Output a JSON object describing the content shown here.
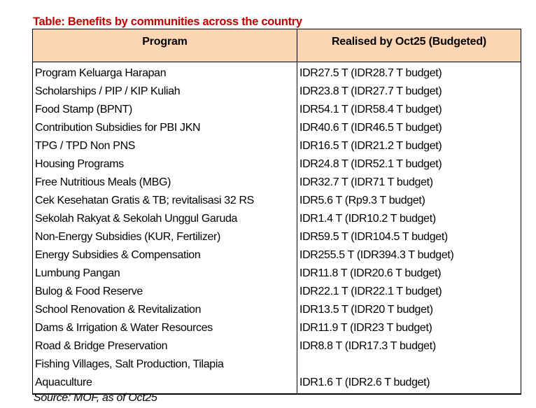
{
  "title": "Table: Benefits by communities across the country",
  "headers": [
    "Program",
    "Realised by Oct25 (Budgeted)"
  ],
  "programs": [
    "Program Keluarga Harapan",
    "Scholarships / PIP / KIP Kuliah",
    "Food Stamp (BPNT)",
    "Contribution Subsidies for PBI JKN",
    "TPG / TPD Non PNS",
    "Housing Programs",
    "Free Nutritious Meals (MBG)",
    "Cek Kesehatan Gratis & TB; revitalisasi 32 RS",
    "Sekolah Rakyat & Sekolah Unggul Garuda",
    "Non-Energy Subsidies (KUR, Fertilizer)",
    "Energy Subsidies & Compensation",
    "Lumbung Pangan",
    "Bulog & Food Reserve",
    "School Renovation & Revitalization",
    "Dams & Irrigation & Water Resources",
    "Road & Bridge Preservation",
    "Fishing Villages, Salt Production, Tilapia",
    "Aquaculture"
  ],
  "values": [
    "IDR27.5 T (IDR28.7 T budget)",
    "IDR23.8 T (IDR27.7 T budget)",
    "IDR54.1 T (IDR58.4 T budget)",
    "IDR40.6 T (IDR46.5 T budget)",
    "IDR16.5 T (IDR21.2 T budget)",
    "IDR24.8 T (IDR52.1 T budget)",
    "IDR32.7 T (IDR71 T budget)",
    "IDR5.6 T (Rp9.3 T budget)",
    "IDR1.4 T (IDR10.2 T budget)",
    "IDR59.5 T (IDR104.5 T budget)",
    "IDR255.5 T (IDR394.3 T budget)",
    "IDR11.8 T (IDR20.6 T budget)",
    "IDR22.1 T (IDR22.1 T budget)",
    "IDR13.5 T (IDR20 T budget)",
    "IDR11.9 T (IDR23 T budget)",
    "IDR8.8 T (IDR17.3 T budget)",
    "",
    "IDR1.6 T (IDR2.6 T budget)"
  ],
  "source": "Source: MOF, as of Oct25"
}
